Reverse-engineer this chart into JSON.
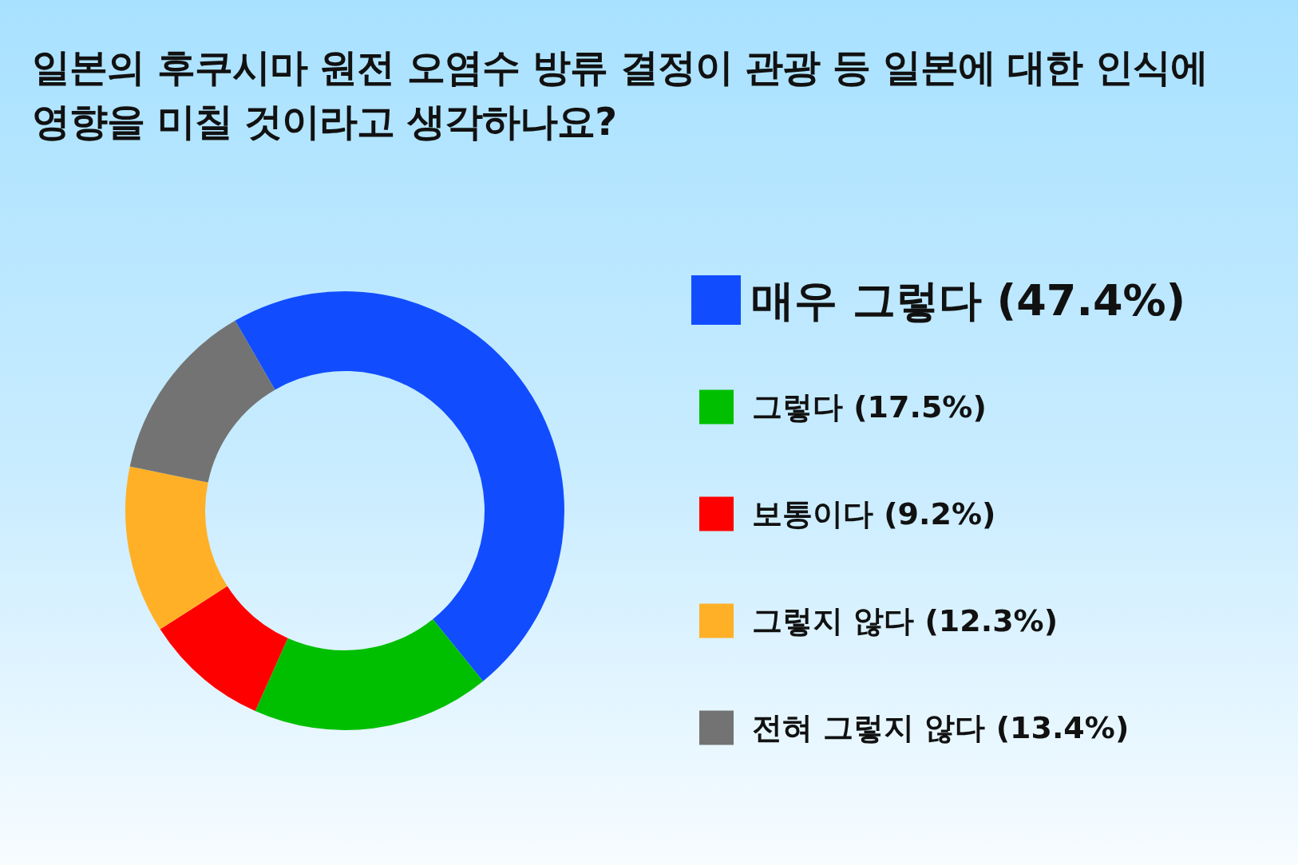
{
  "chart_data": {
    "type": "donut",
    "title": "일본의 후쿠시마 원전 오염수 방류 결정이 관광 등 일본에 대한 인식에 영향을 미칠 것이라고 생각하나요?",
    "categories": [
      "매우 그렇다 (47.4%)",
      "그렇다 (17.5%)",
      "보통이다 (9.2%)",
      "그렇지 않다 (12.3%)",
      "전혀 그렇지 않다 (13.4%)"
    ],
    "values": [
      47.4,
      17.5,
      9.2,
      12.3,
      13.4
    ],
    "colors": [
      "#114dff",
      "#00bf00",
      "#ff0000",
      "#ffb026",
      "#737373"
    ],
    "legend": "right"
  }
}
